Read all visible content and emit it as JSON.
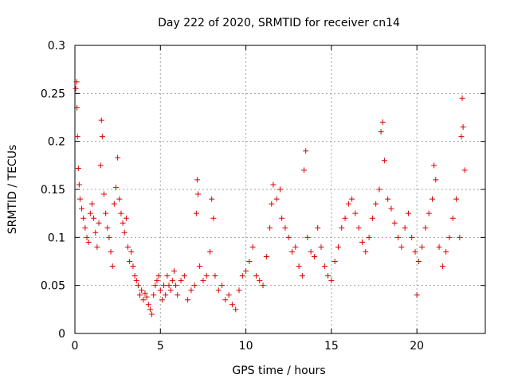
{
  "chart_data": {
    "type": "scatter",
    "title": "Day 222 of 2020, SRMTID for receiver cn14",
    "xlabel": "GPS time / hours",
    "ylabel": "SRMTID / TECUs",
    "xlim": [
      0,
      24
    ],
    "ylim": [
      0,
      0.3
    ],
    "xticks": [
      0,
      5,
      10,
      15,
      20
    ],
    "xtick_labels": [
      "0",
      "5",
      "10",
      "15",
      "20"
    ],
    "yticks": [
      0,
      0.05,
      0.1,
      0.15,
      0.2,
      0.25,
      0.3
    ],
    "ytick_labels": [
      "0",
      "0.05",
      "0.1",
      "0.15",
      "0.2",
      "0.25",
      "0.3"
    ],
    "grid": true,
    "legend": "none",
    "marker": "plus",
    "color": "#dd0000",
    "series": [
      {
        "name": "SRMTID",
        "points": [
          [
            0.05,
            0.255
          ],
          [
            0.1,
            0.262
          ],
          [
            0.12,
            0.235
          ],
          [
            0.15,
            0.205
          ],
          [
            0.2,
            0.172
          ],
          [
            0.25,
            0.155
          ],
          [
            0.3,
            0.14
          ],
          [
            0.4,
            0.13
          ],
          [
            0.5,
            0.12
          ],
          [
            0.6,
            0.11
          ],
          [
            0.7,
            0.1
          ],
          [
            0.8,
            0.095
          ],
          [
            0.9,
            0.125
          ],
          [
            1.0,
            0.135
          ],
          [
            1.1,
            0.12
          ],
          [
            1.2,
            0.105
          ],
          [
            1.3,
            0.09
          ],
          [
            1.4,
            0.115
          ],
          [
            1.5,
            0.175
          ],
          [
            1.55,
            0.222
          ],
          [
            1.6,
            0.205
          ],
          [
            1.7,
            0.145
          ],
          [
            1.8,
            0.125
          ],
          [
            1.9,
            0.11
          ],
          [
            2.0,
            0.1
          ],
          [
            2.1,
            0.085
          ],
          [
            2.2,
            0.07
          ],
          [
            2.3,
            0.135
          ],
          [
            2.4,
            0.152
          ],
          [
            2.5,
            0.183
          ],
          [
            2.6,
            0.14
          ],
          [
            2.7,
            0.125
          ],
          [
            2.8,
            0.115
          ],
          [
            2.9,
            0.105
          ],
          [
            3.0,
            0.12
          ],
          [
            3.1,
            0.09
          ],
          [
            3.2,
            0.075
          ],
          [
            3.3,
            0.085
          ],
          [
            3.4,
            0.07
          ],
          [
            3.5,
            0.06
          ],
          [
            3.6,
            0.055
          ],
          [
            3.7,
            0.05
          ],
          [
            3.8,
            0.04
          ],
          [
            3.9,
            0.045
          ],
          [
            4.0,
            0.035
          ],
          [
            4.1,
            0.042
          ],
          [
            4.2,
            0.038
          ],
          [
            4.3,
            0.03
          ],
          [
            4.4,
            0.025
          ],
          [
            4.5,
            0.02
          ],
          [
            4.6,
            0.04
          ],
          [
            4.7,
            0.05
          ],
          [
            4.8,
            0.055
          ],
          [
            4.9,
            0.06
          ],
          [
            5.0,
            0.045
          ],
          [
            5.1,
            0.035
          ],
          [
            5.2,
            0.05
          ],
          [
            5.3,
            0.04
          ],
          [
            5.4,
            0.06
          ],
          [
            5.5,
            0.05
          ],
          [
            5.6,
            0.045
          ],
          [
            5.7,
            0.055
          ],
          [
            5.8,
            0.065
          ],
          [
            5.9,
            0.05
          ],
          [
            6.0,
            0.04
          ],
          [
            6.2,
            0.055
          ],
          [
            6.4,
            0.06
          ],
          [
            6.6,
            0.035
          ],
          [
            6.8,
            0.045
          ],
          [
            7.0,
            0.05
          ],
          [
            7.1,
            0.125
          ],
          [
            7.15,
            0.16
          ],
          [
            7.2,
            0.145
          ],
          [
            7.3,
            0.07
          ],
          [
            7.5,
            0.055
          ],
          [
            7.7,
            0.06
          ],
          [
            7.9,
            0.085
          ],
          [
            8.0,
            0.14
          ],
          [
            8.1,
            0.12
          ],
          [
            8.2,
            0.06
          ],
          [
            8.4,
            0.045
          ],
          [
            8.6,
            0.05
          ],
          [
            8.8,
            0.035
          ],
          [
            9.0,
            0.04
          ],
          [
            9.2,
            0.03
          ],
          [
            9.4,
            0.025
          ],
          [
            9.6,
            0.045
          ],
          [
            9.8,
            0.06
          ],
          [
            10.0,
            0.065
          ],
          [
            10.2,
            0.075
          ],
          [
            10.4,
            0.09
          ],
          [
            10.6,
            0.06
          ],
          [
            10.8,
            0.055
          ],
          [
            11.0,
            0.05
          ],
          [
            11.2,
            0.08
          ],
          [
            11.4,
            0.11
          ],
          [
            11.5,
            0.135
          ],
          [
            11.6,
            0.155
          ],
          [
            11.8,
            0.14
          ],
          [
            12.0,
            0.15
          ],
          [
            12.1,
            0.12
          ],
          [
            12.3,
            0.11
          ],
          [
            12.5,
            0.1
          ],
          [
            12.7,
            0.085
          ],
          [
            12.9,
            0.09
          ],
          [
            13.1,
            0.07
          ],
          [
            13.3,
            0.06
          ],
          [
            13.4,
            0.17
          ],
          [
            13.5,
            0.19
          ],
          [
            13.6,
            0.1
          ],
          [
            13.8,
            0.085
          ],
          [
            14.0,
            0.08
          ],
          [
            14.2,
            0.11
          ],
          [
            14.4,
            0.09
          ],
          [
            14.6,
            0.07
          ],
          [
            14.8,
            0.06
          ],
          [
            15.0,
            0.055
          ],
          [
            15.2,
            0.075
          ],
          [
            15.4,
            0.09
          ],
          [
            15.6,
            0.11
          ],
          [
            15.8,
            0.12
          ],
          [
            16.0,
            0.135
          ],
          [
            16.2,
            0.14
          ],
          [
            16.4,
            0.125
          ],
          [
            16.6,
            0.11
          ],
          [
            16.8,
            0.095
          ],
          [
            17.0,
            0.085
          ],
          [
            17.2,
            0.1
          ],
          [
            17.4,
            0.12
          ],
          [
            17.6,
            0.135
          ],
          [
            17.8,
            0.15
          ],
          [
            17.9,
            0.21
          ],
          [
            18.0,
            0.22
          ],
          [
            18.1,
            0.18
          ],
          [
            18.3,
            0.14
          ],
          [
            18.5,
            0.13
          ],
          [
            18.7,
            0.115
          ],
          [
            18.9,
            0.1
          ],
          [
            19.1,
            0.09
          ],
          [
            19.3,
            0.11
          ],
          [
            19.5,
            0.125
          ],
          [
            19.7,
            0.1
          ],
          [
            19.9,
            0.085
          ],
          [
            20.0,
            0.04
          ],
          [
            20.1,
            0.075
          ],
          [
            20.3,
            0.09
          ],
          [
            20.5,
            0.11
          ],
          [
            20.7,
            0.125
          ],
          [
            20.9,
            0.14
          ],
          [
            21.0,
            0.175
          ],
          [
            21.1,
            0.16
          ],
          [
            21.3,
            0.09
          ],
          [
            21.5,
            0.07
          ],
          [
            21.7,
            0.085
          ],
          [
            21.9,
            0.1
          ],
          [
            22.1,
            0.12
          ],
          [
            22.3,
            0.14
          ],
          [
            22.5,
            0.1
          ],
          [
            22.6,
            0.205
          ],
          [
            22.65,
            0.245
          ],
          [
            22.7,
            0.215
          ],
          [
            22.8,
            0.17
          ]
        ]
      }
    ]
  }
}
